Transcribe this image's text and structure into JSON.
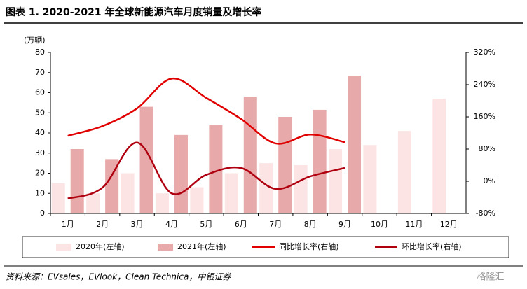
{
  "chart_data": {
    "type": "bar",
    "title": "图表 1. 2020-2021 年全球新能源汽车月度销量及增长率",
    "y_label": "(万辆)",
    "categories": [
      "1月",
      "2月",
      "3月",
      "4月",
      "5月",
      "6月",
      "7月",
      "8月",
      "9月",
      "10月",
      "11月",
      "12月"
    ],
    "series": [
      {
        "name": "2020年(左轴)",
        "type": "bar",
        "color": "#fce4e4",
        "axis": "y",
        "values": [
          15,
          10,
          20,
          10,
          13,
          20,
          25,
          24,
          32,
          34,
          41,
          57
        ]
      },
      {
        "name": "2021年(左轴)",
        "type": "bar",
        "color": "#e8a9aa",
        "axis": "y",
        "values": [
          32,
          27,
          53,
          39,
          44,
          58,
          48,
          51.5,
          68.5,
          null,
          null,
          null
        ]
      },
      {
        "name": "同比增长率(右轴)",
        "type": "line",
        "color": "#e00000",
        "axis": "y2",
        "values": [
          113,
          137,
          181,
          255,
          207,
          155,
          94,
          116,
          97,
          null,
          null,
          null
        ]
      },
      {
        "name": "环比增长率(右轴)",
        "type": "line",
        "color": "#b00010",
        "axis": "y2",
        "values": [
          -43,
          -16,
          96,
          -30,
          16,
          33,
          -19,
          12,
          33,
          null,
          null,
          null
        ]
      }
    ],
    "ylim": [
      0,
      80
    ],
    "yticks": [
      0,
      10,
      20,
      30,
      40,
      50,
      60,
      70,
      80
    ],
    "y2lim": [
      -80,
      320
    ],
    "y2ticks": [
      {
        "value": -80,
        "label": "-80%"
      },
      {
        "value": 0,
        "label": "0%"
      },
      {
        "value": 80,
        "label": "80%"
      },
      {
        "value": 160,
        "label": "160%"
      },
      {
        "value": 240,
        "label": "240%"
      },
      {
        "value": 320,
        "label": "320%"
      }
    ],
    "grid": false,
    "source": "资料来源：EVsales，EVlook，Clean Technica，中银证券",
    "watermark": "格隆汇"
  }
}
